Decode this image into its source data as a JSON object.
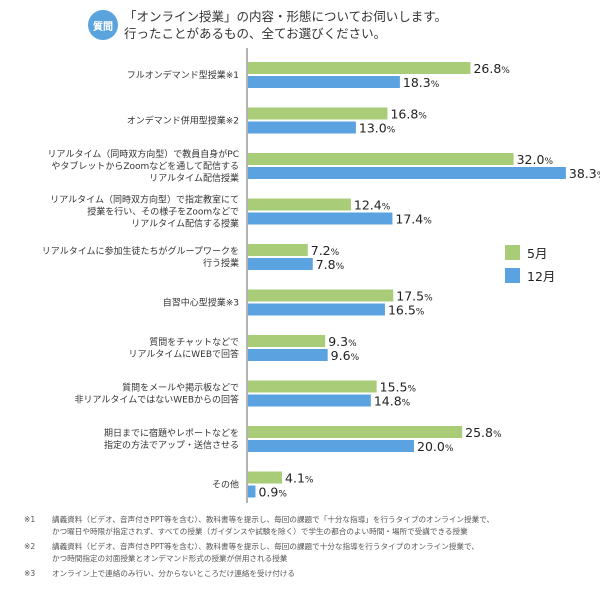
{
  "header": {
    "badge": "質問",
    "question_line1": "「オンライン授業」の内容・形態についてお伺いします。",
    "question_line2": "行ったことがあるもの、全てお選びください。"
  },
  "chart_data": {
    "type": "bar",
    "orientation": "horizontal",
    "title": "「オンライン授業」の内容・形態についてお伺いします。行ったことがあるもの、全てお選びください。",
    "xlabel": "",
    "ylabel": "",
    "unit": "%",
    "xlim": [
      0,
      40
    ],
    "grid": false,
    "legend_position": "right",
    "categories": [
      [
        "フルオンデマンド型授業※1"
      ],
      [
        "オンデマンド併用型授業※2"
      ],
      [
        "リアルタイム（同時双方向型）で教員自身がPC",
        "やタブレットからZoomなどを通して配信する",
        "リアルタイム配信授業"
      ],
      [
        "リアルタイム（同時双方向型）で指定教室にて",
        "授業を行い、その様子をZoomなどで",
        "リアルタイム配信する授業"
      ],
      [
        "リアルタイムに参加生徒たちがグループワークを",
        "行う授業"
      ],
      [
        "自習中心型授業※3"
      ],
      [
        "質問をチャットなどで",
        "リアルタイムにWEBで回答"
      ],
      [
        "質問をメールや掲示板などで",
        "非リアルタイムではないWEBからの回答"
      ],
      [
        "期日までに宿題やレポートなどを",
        "指定の方法でアップ・送信させる"
      ],
      [
        "その他"
      ]
    ],
    "series": [
      {
        "name": "5月",
        "color": "#a8cc78",
        "values": [
          26.8,
          16.8,
          32.0,
          12.4,
          7.2,
          17.5,
          9.3,
          15.5,
          25.8,
          4.1
        ]
      },
      {
        "name": "12月",
        "color": "#5aa3e0",
        "values": [
          18.3,
          13.0,
          38.3,
          17.4,
          7.8,
          16.5,
          9.6,
          14.8,
          20.0,
          0.9
        ]
      }
    ]
  },
  "notes": [
    {
      "mark": "※1",
      "lines": [
        "講義資料（ビデオ、音声付きPPT等を含む）、教科書等を提示し、毎回の課題で「十分な指導」を行うタイプのオンライン授業で、",
        "かつ曜日や時限が指定されず、すべての授業（ガイダンスや試験を除く）で学生の都合のよい時間・場所で受講できる授業"
      ]
    },
    {
      "mark": "※2",
      "lines": [
        "講義資料（ビデオ、音声付きPPT等を含む）、教科書等を提示し、毎回の課題で十分な指導を行うタイプのオンライン授業で、",
        "かつ時間指定の対面授業とオンデマンド形式の授業が併用される授業"
      ]
    },
    {
      "mark": "※3",
      "lines": [
        "オンライン上で連絡のみ行い、分からないところだけ連絡を受け付ける"
      ]
    }
  ]
}
